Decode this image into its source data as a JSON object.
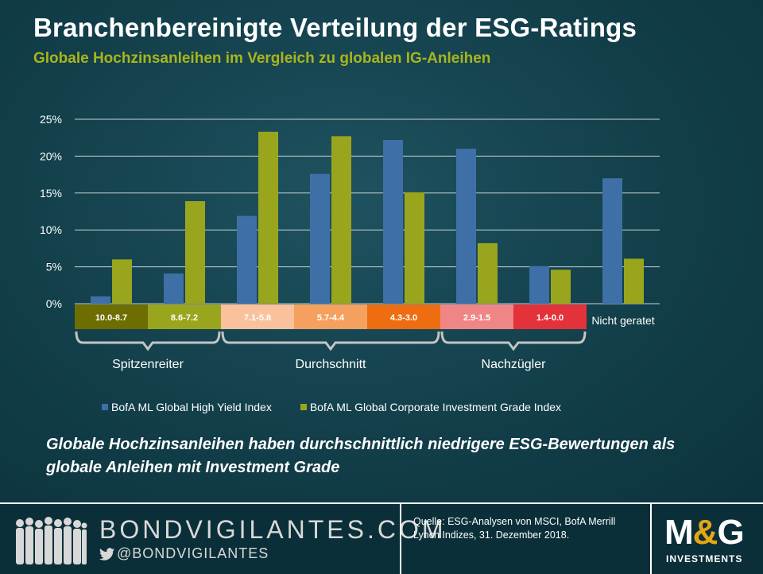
{
  "title": "Branchenbereinigte Verteilung der ESG-Ratings",
  "subtitle": "Globale Hochzinsanleihen im Vergleich zu globalen IG-Anleihen",
  "chart_data": {
    "type": "bar",
    "categories": [
      "10.0-8.7",
      "8.6-7.2",
      "7.1-5.8",
      "5.7-4.4",
      "4.3-3.0",
      "2.9-1.5",
      "1.4-0.0",
      "Nicht geratet"
    ],
    "category_colors": [
      "#6d6d00",
      "#9aa51e",
      "#f9c29d",
      "#f5a05f",
      "#ee6d10",
      "#ef8585",
      "#e4323a",
      ""
    ],
    "series": [
      {
        "name": "BofA ML Global High Yield Index",
        "color": "#3e6fa6",
        "values": [
          1.0,
          4.1,
          11.9,
          17.6,
          22.2,
          21.0,
          5.1,
          17.0
        ]
      },
      {
        "name": "BofA ML Global Corporate Investment Grade Index",
        "color": "#9aa51e",
        "values": [
          6.0,
          13.9,
          23.3,
          22.7,
          15.1,
          8.2,
          4.6,
          6.1
        ]
      }
    ],
    "yticks": [
      "0%",
      "5%",
      "10%",
      "15%",
      "20%",
      "25%"
    ],
    "ylim": [
      0,
      25
    ],
    "grid": true,
    "legend_position": "bottom",
    "groups": [
      {
        "label": "Spitzenreiter",
        "from": 0,
        "to": 1
      },
      {
        "label": "Durchschnitt",
        "from": 2,
        "to": 4
      },
      {
        "label": "Nachzügler",
        "from": 5,
        "to": 6
      }
    ]
  },
  "takeaway": "Globale Hochzinsanleihen haben durchschnittlich niedrigere ESG-Bewertungen als globale Anleihen mit Investment Grade",
  "footer": {
    "site": "BONDVIGILANTES.COM",
    "twitter": "@BONDVIGILANTES",
    "source": "Quelle: ESG-Analysen von MSCI, BofA Merrill Lynch Indizes, 31. Dezember 2018.",
    "logo_m1": "M",
    "logo_amp": "&",
    "logo_g": "G",
    "logo_sub": "INVESTMENTS"
  },
  "icons": {
    "crowd": "people-silhouette-icon",
    "twitter": "twitter-bird-icon"
  }
}
